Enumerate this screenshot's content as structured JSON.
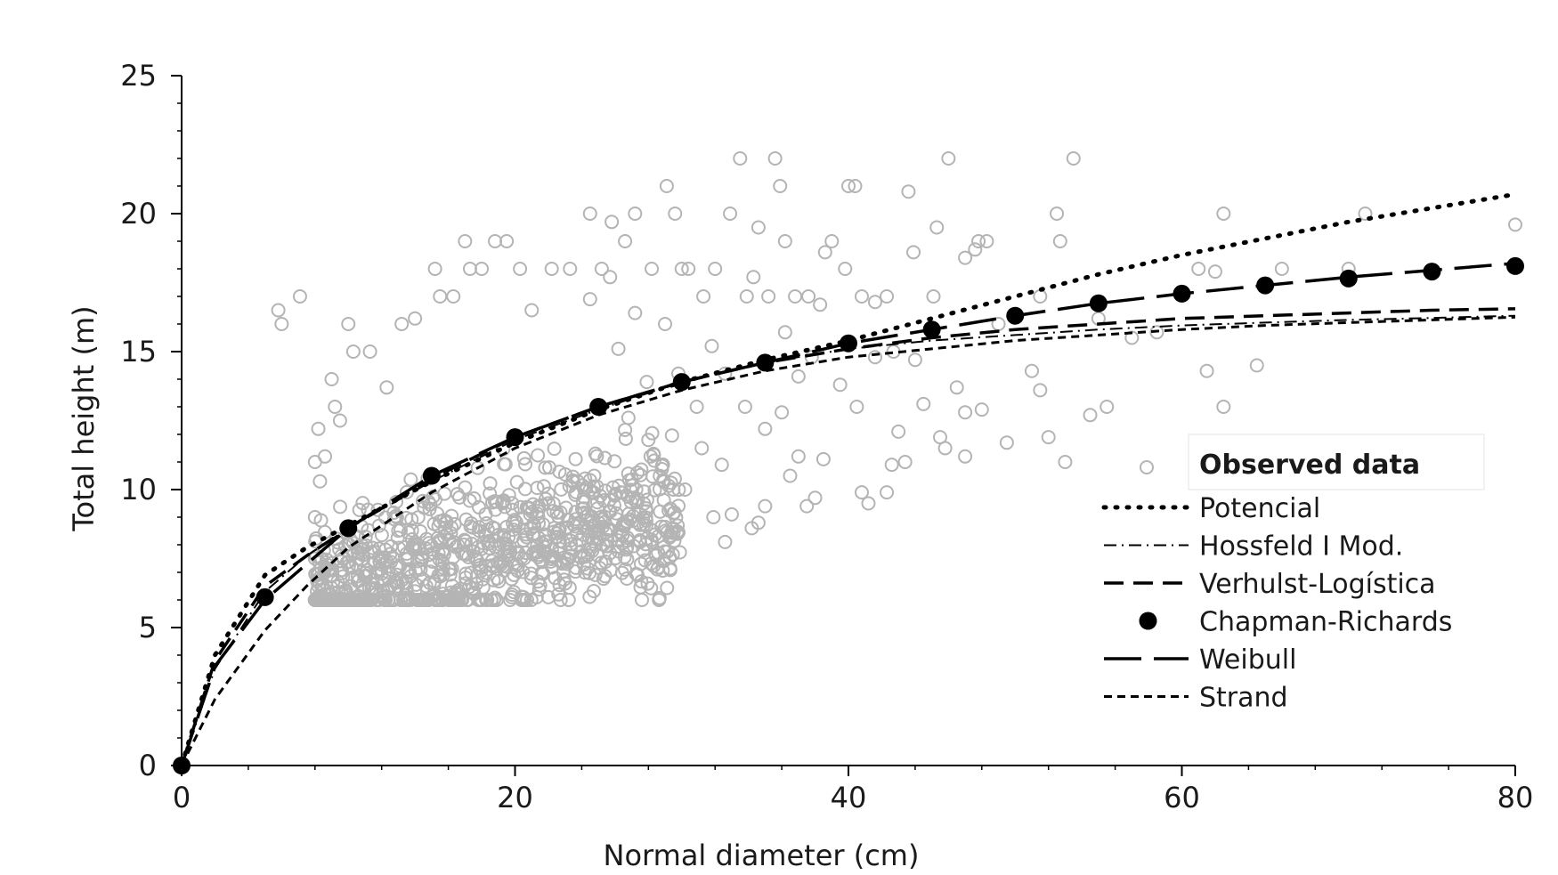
{
  "chart_data": {
    "type": "scatter",
    "xlabel": "Normal diameter (cm)",
    "ylabel": "Total height (m)",
    "xlim": [
      0,
      80
    ],
    "ylim": [
      0,
      25
    ],
    "x_ticks": [
      "0",
      "20",
      "40",
      "60",
      "80"
    ],
    "y_ticks": [
      "0",
      "5",
      "10",
      "15",
      "20",
      "25"
    ],
    "grid": false,
    "legend_position": "right",
    "legend_title": "Observed data",
    "colors": {
      "observed": "#b4b4b4",
      "curves": "#000000"
    },
    "observed_points": [
      [
        5.8,
        16.5
      ],
      [
        6.0,
        16.0
      ],
      [
        7.1,
        17.0
      ],
      [
        8.2,
        12.2
      ],
      [
        8.0,
        11.0
      ],
      [
        9.0,
        14.0
      ],
      [
        9.2,
        13.0
      ],
      [
        9.5,
        12.5
      ],
      [
        10.0,
        16.0
      ],
      [
        10.3,
        15.0
      ],
      [
        11.3,
        15.0
      ],
      [
        12.3,
        13.7
      ],
      [
        13.2,
        16.0
      ],
      [
        14.0,
        16.2
      ],
      [
        15.2,
        18.0
      ],
      [
        15.5,
        17.0
      ],
      [
        16.3,
        17.0
      ],
      [
        17.0,
        19.0
      ],
      [
        17.3,
        18.0
      ],
      [
        18.0,
        18.0
      ],
      [
        18.8,
        19.0
      ],
      [
        19.5,
        19.0
      ],
      [
        20.3,
        18.0
      ],
      [
        21.0,
        16.5
      ],
      [
        22.2,
        18.0
      ],
      [
        23.3,
        18.0
      ],
      [
        24.5,
        20.0
      ],
      [
        25.2,
        18.0
      ],
      [
        25.8,
        19.7
      ],
      [
        26.6,
        19.0
      ],
      [
        27.2,
        20.0
      ],
      [
        28.2,
        18.0
      ],
      [
        29.1,
        21.0
      ],
      [
        29.6,
        20.0
      ],
      [
        30.0,
        18.0
      ],
      [
        30.4,
        18.0
      ],
      [
        31.3,
        17.0
      ],
      [
        32.0,
        18.0
      ],
      [
        32.9,
        20.0
      ],
      [
        33.5,
        22.0
      ],
      [
        33.9,
        17.0
      ],
      [
        34.3,
        17.7
      ],
      [
        34.6,
        19.5
      ],
      [
        35.2,
        17.0
      ],
      [
        35.6,
        22.0
      ],
      [
        35.9,
        21.0
      ],
      [
        36.2,
        19.0
      ],
      [
        36.8,
        17.0
      ],
      [
        37.6,
        17.0
      ],
      [
        38.6,
        18.6
      ],
      [
        39.0,
        19.0
      ],
      [
        39.8,
        18.0
      ],
      [
        40.0,
        21.0
      ],
      [
        40.4,
        21.0
      ],
      [
        40.8,
        17.0
      ],
      [
        41.6,
        16.8
      ],
      [
        42.3,
        17.0
      ],
      [
        43.6,
        20.8
      ],
      [
        43.9,
        18.6
      ],
      [
        45.1,
        17.0
      ],
      [
        45.3,
        19.5
      ],
      [
        46.0,
        22.0
      ],
      [
        47.0,
        18.4
      ],
      [
        47.6,
        18.7
      ],
      [
        47.8,
        19.0
      ],
      [
        48.3,
        19.0
      ],
      [
        49.0,
        16.0
      ],
      [
        50.0,
        16.3
      ],
      [
        51.5,
        17.0
      ],
      [
        52.5,
        20.0
      ],
      [
        52.7,
        19.0
      ],
      [
        53.5,
        22.0
      ],
      [
        55.0,
        16.2
      ],
      [
        57.0,
        15.5
      ],
      [
        61.0,
        18.0
      ],
      [
        62.0,
        17.9
      ],
      [
        62.5,
        20.0
      ],
      [
        64.5,
        14.5
      ],
      [
        66.0,
        18.0
      ],
      [
        70.0,
        18.0
      ],
      [
        71.0,
        20.0
      ],
      [
        80.0,
        19.6
      ],
      [
        58.5,
        15.7
      ],
      [
        61.5,
        14.3
      ],
      [
        62.5,
        13.0
      ],
      [
        51.0,
        14.3
      ],
      [
        51.5,
        13.6
      ],
      [
        52.0,
        11.9
      ],
      [
        53.0,
        11.0
      ],
      [
        54.5,
        12.7
      ],
      [
        55.5,
        13.0
      ],
      [
        49.5,
        11.7
      ],
      [
        47.0,
        11.2
      ],
      [
        45.5,
        11.9
      ],
      [
        45.8,
        11.5
      ],
      [
        46.5,
        13.7
      ],
      [
        47.0,
        12.8
      ],
      [
        48.0,
        12.9
      ],
      [
        44.5,
        13.1
      ],
      [
        43.0,
        12.1
      ],
      [
        43.4,
        11.0
      ],
      [
        42.3,
        9.9
      ],
      [
        42.6,
        10.9
      ],
      [
        40.5,
        13.0
      ],
      [
        40.8,
        9.9
      ],
      [
        41.2,
        9.5
      ],
      [
        38.5,
        11.1
      ],
      [
        38.0,
        9.7
      ],
      [
        37.5,
        9.4
      ],
      [
        36.5,
        10.5
      ],
      [
        35.0,
        9.4
      ],
      [
        34.6,
        8.8
      ],
      [
        34.2,
        8.6
      ],
      [
        33.0,
        9.1
      ],
      [
        32.6,
        8.1
      ],
      [
        31.9,
        9.0
      ],
      [
        30.2,
        10.0
      ],
      [
        29.5,
        10.0
      ],
      [
        28.7,
        9.2
      ],
      [
        28.2,
        8.1
      ],
      [
        27.5,
        8.1
      ],
      [
        26.6,
        7.1
      ],
      [
        25.7,
        7.7
      ],
      [
        25.3,
        8.0
      ],
      [
        24.8,
        8.5
      ],
      [
        23.1,
        7.5
      ],
      [
        22.6,
        6.2
      ],
      [
        22.0,
        6.1
      ],
      [
        21.3,
        6.1
      ],
      [
        20.5,
        6.1
      ],
      [
        19.8,
        6.1
      ],
      [
        18.9,
        6.0
      ],
      [
        17.9,
        6.0
      ],
      [
        17.1,
        6.0
      ],
      [
        16.3,
        6.0
      ],
      [
        15.5,
        6.1
      ],
      [
        14.6,
        6.0
      ],
      [
        13.4,
        6.0
      ],
      [
        12.4,
        6.0
      ],
      [
        11.4,
        6.0
      ],
      [
        10.5,
        6.1
      ],
      [
        9.6,
        6.0
      ],
      [
        8.9,
        6.2
      ],
      [
        8.2,
        6.5
      ],
      [
        8.0,
        7.5
      ],
      [
        8.0,
        9.0
      ],
      [
        8.3,
        10.3
      ],
      [
        8.6,
        11.2
      ],
      [
        30.9,
        13.0
      ],
      [
        29.8,
        14.2
      ],
      [
        31.8,
        15.2
      ],
      [
        32.6,
        14.2
      ],
      [
        33.8,
        13.0
      ],
      [
        35.0,
        12.2
      ],
      [
        36.0,
        12.8
      ],
      [
        37.0,
        14.1
      ],
      [
        36.2,
        15.7
      ],
      [
        38.3,
        16.7
      ],
      [
        37.8,
        14.8
      ],
      [
        39.5,
        13.8
      ],
      [
        41.6,
        14.8
      ],
      [
        42.7,
        15.0
      ],
      [
        44.0,
        14.7
      ],
      [
        37.0,
        11.2
      ],
      [
        31.2,
        11.5
      ],
      [
        32.4,
        10.9
      ],
      [
        28.0,
        11.8
      ],
      [
        26.8,
        12.6
      ],
      [
        27.9,
        13.9
      ],
      [
        26.2,
        15.1
      ],
      [
        27.2,
        16.4
      ],
      [
        24.5,
        16.9
      ],
      [
        25.7,
        17.7
      ],
      [
        29.0,
        16.0
      ]
    ],
    "series": [
      {
        "name": "Potencial",
        "style": "dotted",
        "x": [
          0,
          2,
          5,
          7.5,
          10,
          15,
          20,
          25,
          30,
          35,
          40,
          45,
          50,
          55,
          60,
          65,
          70,
          75,
          80
        ],
        "y": [
          0,
          4.0,
          6.9,
          7.9,
          8.7,
          10.3,
          11.7,
          12.9,
          13.9,
          14.7,
          15.4,
          16.2,
          17.0,
          17.8,
          18.5,
          19.1,
          19.7,
          20.2,
          20.7
        ]
      },
      {
        "name": "Hossfeld I Mod.",
        "style": "dashdot",
        "x": [
          0,
          2,
          5,
          7.5,
          10,
          15,
          20,
          25,
          30,
          35,
          40,
          45,
          50,
          55,
          60,
          65,
          70,
          75,
          80
        ],
        "y": [
          0,
          3.5,
          6.3,
          7.6,
          8.6,
          10.3,
          11.8,
          12.9,
          13.9,
          14.6,
          15.1,
          15.4,
          15.6,
          15.8,
          15.95,
          16.05,
          16.15,
          16.22,
          16.3
        ]
      },
      {
        "name": "Verhulst-Logística",
        "style": "dashed",
        "x": [
          0,
          2,
          5,
          7.5,
          10,
          15,
          20,
          25,
          30,
          35,
          40,
          45,
          50,
          55,
          60,
          65,
          70,
          75,
          80
        ],
        "y": [
          0,
          3.8,
          6.5,
          7.6,
          8.6,
          10.4,
          11.9,
          13.0,
          13.9,
          14.6,
          15.1,
          15.5,
          15.8,
          16.0,
          16.2,
          16.3,
          16.4,
          16.5,
          16.55
        ]
      },
      {
        "name": "Chapman-Richards",
        "style": "markers",
        "x": [
          0,
          5,
          10,
          15,
          20,
          25,
          30,
          35,
          40,
          45,
          50,
          55,
          60,
          65,
          70,
          75,
          80
        ],
        "y": [
          0,
          6.1,
          8.6,
          10.5,
          11.9,
          13.0,
          13.9,
          14.6,
          15.3,
          15.8,
          16.3,
          16.75,
          17.1,
          17.4,
          17.65,
          17.9,
          18.1
        ]
      },
      {
        "name": "Weibull",
        "style": "longdash",
        "x": [
          0,
          2,
          5,
          7.5,
          10,
          15,
          20,
          25,
          30,
          35,
          40,
          45,
          50,
          55,
          60,
          65,
          70,
          75,
          80
        ],
        "y": [
          0,
          3.6,
          6.0,
          7.3,
          8.6,
          10.5,
          11.9,
          13.0,
          13.9,
          14.6,
          15.3,
          15.8,
          16.3,
          16.75,
          17.1,
          17.4,
          17.7,
          17.95,
          18.2
        ]
      },
      {
        "name": "Strand",
        "style": "shortdash",
        "x": [
          0,
          2,
          5,
          7.5,
          10,
          15,
          20,
          25,
          30,
          35,
          40,
          45,
          50,
          55,
          60,
          65,
          70,
          75,
          80
        ],
        "y": [
          0,
          2.4,
          4.9,
          6.5,
          7.9,
          9.9,
          11.5,
          12.7,
          13.6,
          14.3,
          14.8,
          15.1,
          15.4,
          15.6,
          15.8,
          15.95,
          16.05,
          16.15,
          16.25
        ]
      }
    ]
  }
}
